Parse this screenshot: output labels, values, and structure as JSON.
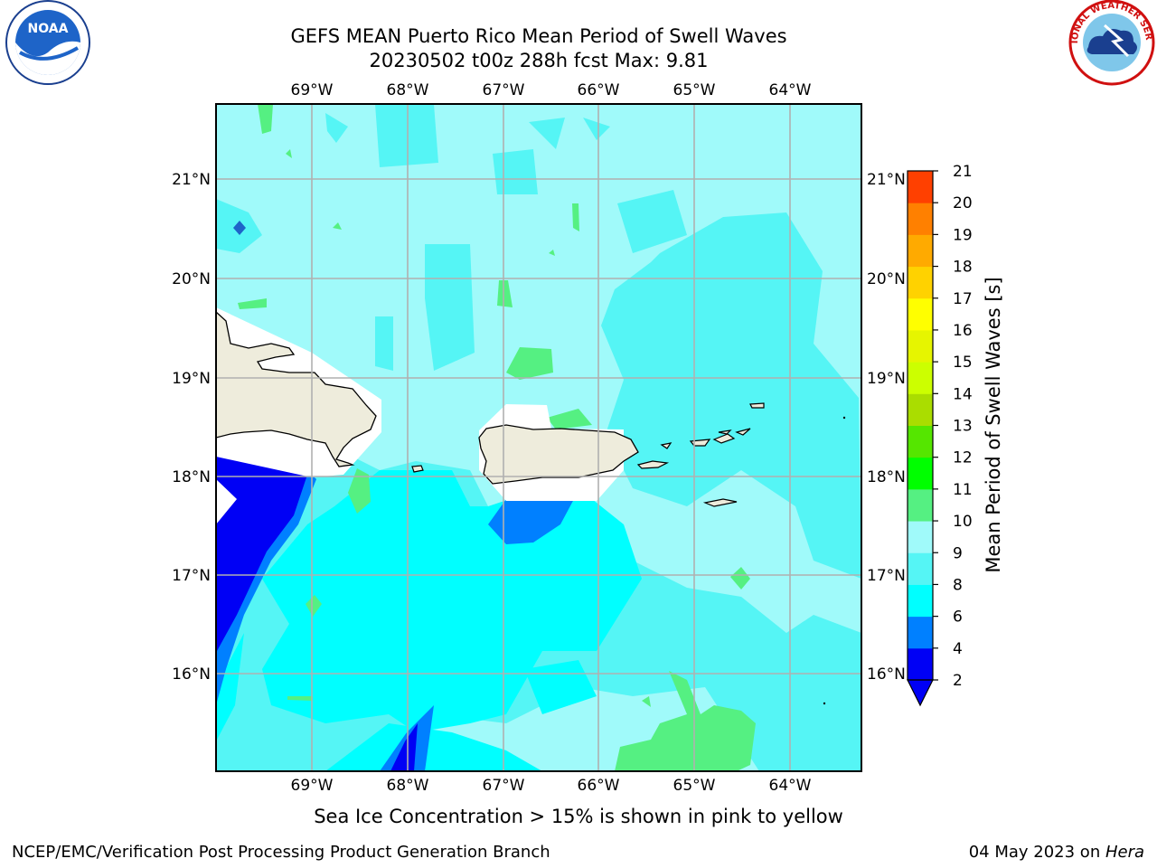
{
  "title": {
    "line1": "GEFS MEAN Puerto Rico Mean Period of Swell Waves",
    "line2": "20230502 t00z 288h fcst   Max: 9.81"
  },
  "caption": "Sea Ice Concentration > 15% is shown in pink to yellow",
  "footer": {
    "left": "NCEP/EMC/Verification Post Processing Product Generation Branch",
    "date": "04 May 2023 on ",
    "machine": "Hera"
  },
  "logos": {
    "left": {
      "name": "NOAA",
      "text": "NOAA"
    },
    "right": {
      "name": "National Weather Service",
      "text": "NATIONAL WEATHER SERVICE"
    }
  },
  "map": {
    "lon_ticks": [
      "69°W",
      "68°W",
      "67°W",
      "66°W",
      "65°W",
      "64°W"
    ],
    "lat_ticks": [
      "21°N",
      "20°N",
      "19°N",
      "18°N",
      "17°N",
      "16°N"
    ],
    "extent": {
      "lon_min": -70.0,
      "lon_max": -63.26,
      "lat_min": 15.0,
      "lat_max": 21.75
    },
    "land_color": "#eeecdc",
    "grid_color": "#b0b0b0"
  },
  "colorbar": {
    "label": "Mean Period of Swell Waves [s]",
    "levels": [
      "2",
      "4",
      "6",
      "8",
      "9",
      "10",
      "11",
      "12",
      "13",
      "14",
      "15",
      "16",
      "17",
      "18",
      "19",
      "20",
      "21"
    ],
    "colors": [
      "#0000f5",
      "#0080ff",
      "#00ffff",
      "#55f5f5",
      "#a0fafa",
      "#55f082",
      "#00ff00",
      "#55e600",
      "#aadd00",
      "#ccff00",
      "#e6f500",
      "#ffff00",
      "#ffd200",
      "#ffaa00",
      "#ff8000",
      "#ff4000",
      "#ff0000"
    ],
    "under_color": "#0000f5"
  }
}
